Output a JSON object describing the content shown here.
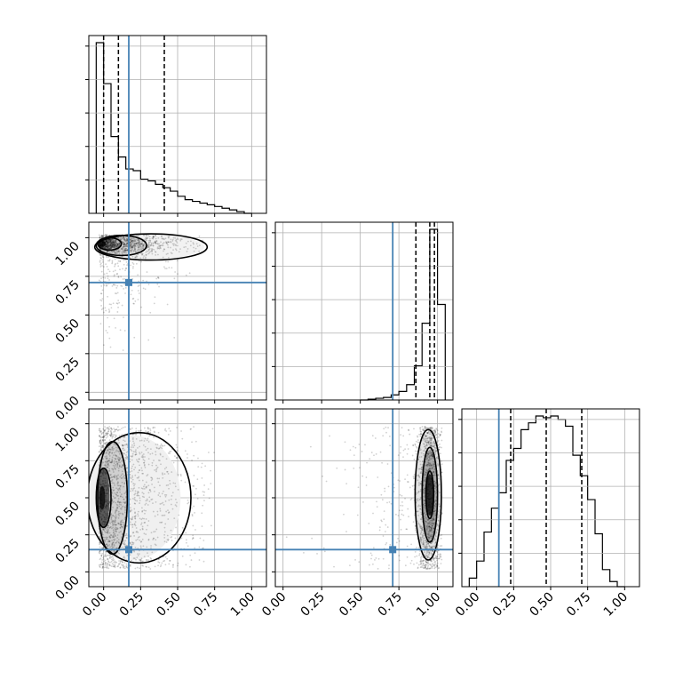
{
  "chart_data": {
    "type": "corner",
    "parameters": [
      "",
      "",
      ""
    ],
    "truths": [
      0.17,
      0.71,
      0.15
    ],
    "quantiles": [
      [
        0.0,
        0.1,
        0.41
      ],
      [
        0.86,
        0.95,
        0.98
      ],
      [
        0.23,
        0.47,
        0.71
      ]
    ],
    "limits": [
      [
        -0.1,
        1.1
      ],
      [
        -0.05,
        1.1
      ],
      [
        -0.1,
        1.1
      ]
    ],
    "tick_values": [
      0.0,
      0.25,
      0.5,
      0.75,
      1.0
    ],
    "tick_labels": [
      "0.00",
      "0.25",
      "0.50",
      "0.75",
      "1.00"
    ],
    "grid": true,
    "truth_color": "#4682b4",
    "hist1d": [
      {
        "edges": [
          -0.05,
          0.0,
          0.05,
          0.1,
          0.15,
          0.2,
          0.25,
          0.3,
          0.35,
          0.4,
          0.45,
          0.5,
          0.55,
          0.6,
          0.65,
          0.7,
          0.75,
          0.8,
          0.85,
          0.9,
          0.95,
          1.0
        ],
        "counts": [
          1.0,
          0.76,
          0.45,
          0.33,
          0.26,
          0.25,
          0.2,
          0.19,
          0.17,
          0.15,
          0.13,
          0.1,
          0.08,
          0.07,
          0.06,
          0.05,
          0.04,
          0.03,
          0.02,
          0.01,
          0.0
        ]
      },
      {
        "edges": [
          0.5,
          0.55,
          0.6,
          0.65,
          0.7,
          0.75,
          0.8,
          0.85,
          0.9,
          0.95,
          1.0,
          1.05
        ],
        "counts": [
          0.0,
          0.005,
          0.01,
          0.015,
          0.03,
          0.05,
          0.09,
          0.2,
          0.45,
          1.0,
          0.56
        ]
      },
      {
        "edges": [
          -0.05,
          0.0,
          0.05,
          0.1,
          0.15,
          0.2,
          0.25,
          0.3,
          0.35,
          0.4,
          0.45,
          0.5,
          0.55,
          0.6,
          0.65,
          0.7,
          0.75,
          0.8,
          0.85,
          0.9,
          0.95,
          1.0
        ],
        "counts": [
          0.05,
          0.15,
          0.32,
          0.46,
          0.55,
          0.74,
          0.81,
          0.92,
          0.96,
          1.0,
          0.99,
          1.0,
          0.98,
          0.94,
          0.77,
          0.65,
          0.51,
          0.31,
          0.1,
          0.03,
          0.0
        ]
      }
    ]
  }
}
